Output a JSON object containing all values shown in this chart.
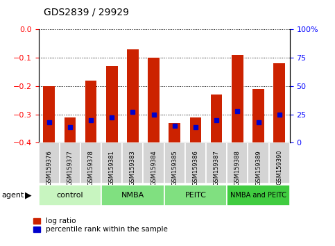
{
  "title": "GDS2839 / 29929",
  "samples": [
    "GSM159376",
    "GSM159377",
    "GSM159378",
    "GSM159381",
    "GSM159383",
    "GSM159384",
    "GSM159385",
    "GSM159386",
    "GSM159387",
    "GSM159388",
    "GSM159389",
    "GSM159390"
  ],
  "log_ratio": [
    -0.2,
    -0.31,
    -0.18,
    -0.13,
    -0.07,
    -0.1,
    -0.33,
    -0.31,
    -0.23,
    -0.09,
    -0.21,
    -0.12
  ],
  "percentile_rank": [
    18,
    14,
    20,
    22,
    27,
    25,
    15,
    14,
    20,
    28,
    18,
    25
  ],
  "groups": [
    {
      "label": "control",
      "indices": [
        0,
        1,
        2
      ],
      "color": "#c8f0c0"
    },
    {
      "label": "NMBA",
      "indices": [
        3,
        4,
        5
      ],
      "color": "#80e080"
    },
    {
      "label": "PEITC",
      "indices": [
        6,
        7,
        8
      ],
      "color": "#80e080"
    },
    {
      "label": "NMBA and PEITC",
      "indices": [
        9,
        10,
        11
      ],
      "color": "#40cc40"
    }
  ],
  "agent_label": "agent",
  "ylim_left": [
    -0.4,
    0.0
  ],
  "ylim_right": [
    0,
    100
  ],
  "yticks_left": [
    -0.4,
    -0.3,
    -0.2,
    -0.1,
    0.0
  ],
  "yticks_right": [
    0,
    25,
    50,
    75,
    100
  ],
  "bar_color": "#cc2200",
  "pct_color": "#0000cc",
  "plot_bg": "#ffffff",
  "bar_width": 0.55,
  "sample_bg": "#d4d4d4"
}
